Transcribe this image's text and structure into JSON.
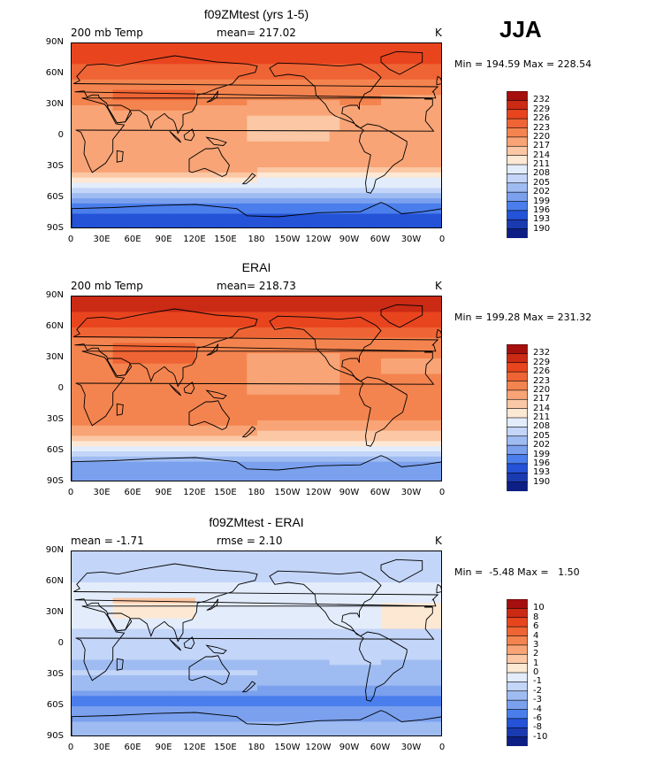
{
  "season": "JJA",
  "units": "K",
  "lat_labels": [
    "90N",
    "60N",
    "30N",
    "0",
    "30S",
    "60S",
    "90S"
  ],
  "lon_labels": [
    "0",
    "30E",
    "60E",
    "90E",
    "120E",
    "150E",
    "180",
    "150W",
    "120W",
    "90W",
    "60W",
    "30W",
    "0"
  ],
  "absolute_levels": [
    "232",
    "229",
    "226",
    "223",
    "220",
    "217",
    "214",
    "211",
    "208",
    "205",
    "202",
    "199",
    "196",
    "193",
    "190"
  ],
  "absolute_colors": [
    "#a50f0d",
    "#cb2a14",
    "#e8451f",
    "#ef6434",
    "#f4844f",
    "#f8a476",
    "#fbc7a4",
    "#fde8d4",
    "#e3ecfb",
    "#c3d5f8",
    "#9fbcf2",
    "#7aa0ee",
    "#4a7eec",
    "#2453d8",
    "#1a3ab0",
    "#0d1f85"
  ],
  "diff_levels": [
    "10",
    "8",
    "6",
    "4",
    "3",
    "2",
    "1",
    "0",
    "-1",
    "-2",
    "-3",
    "-4",
    "-6",
    "-8",
    "-10"
  ],
  "diff_colors": [
    "#a50f0d",
    "#cb2a14",
    "#e8451f",
    "#ef6434",
    "#f4844f",
    "#f8a476",
    "#fbc7a4",
    "#fde8d4",
    "#e3ecfb",
    "#c3d5f8",
    "#9fbcf2",
    "#7aa0ee",
    "#4a7eec",
    "#2453d8",
    "#1a3ab0",
    "#0d1f85"
  ],
  "panels": [
    {
      "title": "f09ZMtest (yrs 1-5)",
      "left_label": "200 mb Temp",
      "mid_label": "mean= 217.02",
      "right_label": "K",
      "minmax": "Min = 194.59 Max = 228.54",
      "stats": {
        "mean": 217.02,
        "min": 194.59,
        "max": 228.54
      }
    },
    {
      "title": "ERAI",
      "left_label": "200 mb Temp",
      "mid_label": "mean= 218.73",
      "right_label": "K",
      "minmax": "Min = 199.28 Max = 231.32",
      "stats": {
        "mean": 218.73,
        "min": 199.28,
        "max": 231.32
      }
    },
    {
      "title": "f09ZMtest - ERAI",
      "left_label": "mean =  -1.71",
      "mid_label": "rmse =   2.10",
      "right_label": "K",
      "minmax": "Min =  -5.48 Max =   1.50",
      "stats": {
        "mean": -1.71,
        "rmse": 2.1,
        "min": -5.48,
        "max": 1.5
      }
    }
  ],
  "chart_data": [
    {
      "type": "heatmap",
      "title": "f09ZMtest (yrs 1-5)",
      "subtitle": "200 mb Temp",
      "units": "K",
      "xlim": [
        0,
        360
      ],
      "ylim": [
        -90,
        90
      ],
      "zonal_profile": [
        {
          "lat": 90,
          "temp": 228
        },
        {
          "lat": 75,
          "temp": 227
        },
        {
          "lat": 60,
          "temp": 224
        },
        {
          "lat": 45,
          "temp": 221
        },
        {
          "lat": 30,
          "temp": 220
        },
        {
          "lat": 15,
          "temp": 219
        },
        {
          "lat": 0,
          "temp": 218
        },
        {
          "lat": -15,
          "temp": 218
        },
        {
          "lat": -30,
          "temp": 217
        },
        {
          "lat": -45,
          "temp": 209
        },
        {
          "lat": -55,
          "temp": 205
        },
        {
          "lat": -65,
          "temp": 199
        },
        {
          "lat": -75,
          "temp": 196
        },
        {
          "lat": -90,
          "temp": 195
        }
      ],
      "colorbar_levels": [
        190,
        193,
        196,
        199,
        202,
        205,
        208,
        211,
        214,
        217,
        220,
        223,
        226,
        229,
        232
      ]
    },
    {
      "type": "heatmap",
      "title": "ERAI",
      "subtitle": "200 mb Temp",
      "units": "K",
      "xlim": [
        0,
        360
      ],
      "ylim": [
        -90,
        90
      ],
      "zonal_profile": [
        {
          "lat": 90,
          "temp": 230
        },
        {
          "lat": 75,
          "temp": 229
        },
        {
          "lat": 60,
          "temp": 226
        },
        {
          "lat": 45,
          "temp": 222
        },
        {
          "lat": 30,
          "temp": 221
        },
        {
          "lat": 15,
          "temp": 220
        },
        {
          "lat": 0,
          "temp": 220
        },
        {
          "lat": -15,
          "temp": 220
        },
        {
          "lat": -30,
          "temp": 220
        },
        {
          "lat": -45,
          "temp": 215
        },
        {
          "lat": -55,
          "temp": 211
        },
        {
          "lat": -65,
          "temp": 203
        },
        {
          "lat": -75,
          "temp": 200
        },
        {
          "lat": -90,
          "temp": 199
        }
      ],
      "colorbar_levels": [
        190,
        193,
        196,
        199,
        202,
        205,
        208,
        211,
        214,
        217,
        220,
        223,
        226,
        229,
        232
      ]
    },
    {
      "type": "heatmap",
      "title": "f09ZMtest - ERAI",
      "units": "K",
      "xlim": [
        0,
        360
      ],
      "ylim": [
        -90,
        90
      ],
      "zonal_profile": [
        {
          "lat": 90,
          "temp": -2
        },
        {
          "lat": 75,
          "temp": -2
        },
        {
          "lat": 60,
          "temp": -1
        },
        {
          "lat": 45,
          "temp": 0
        },
        {
          "lat": 30,
          "temp": -1
        },
        {
          "lat": 15,
          "temp": -1
        },
        {
          "lat": 0,
          "temp": -1.5
        },
        {
          "lat": -15,
          "temp": -2
        },
        {
          "lat": -30,
          "temp": -2.5
        },
        {
          "lat": -45,
          "temp": -3.5
        },
        {
          "lat": -55,
          "temp": -4.5
        },
        {
          "lat": -65,
          "temp": -3.5
        },
        {
          "lat": -75,
          "temp": -3
        },
        {
          "lat": -90,
          "temp": -3
        }
      ],
      "colorbar_levels": [
        -10,
        -8,
        -6,
        -4,
        -3,
        -2,
        -1,
        0,
        1,
        2,
        3,
        4,
        6,
        8,
        10
      ]
    }
  ]
}
